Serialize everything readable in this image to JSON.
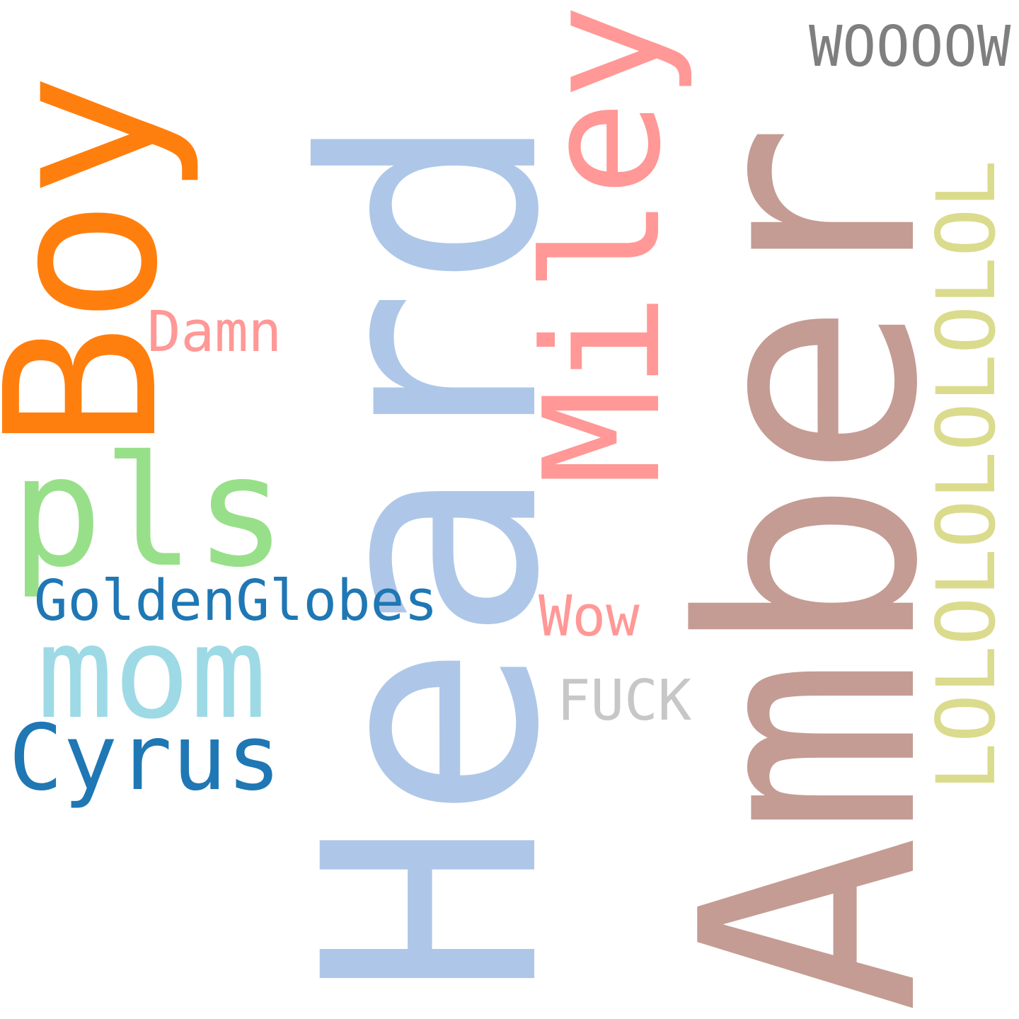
{
  "words": [
    {
      "text": "Amber",
      "color": "#c49c94"
    },
    {
      "text": "Heard",
      "color": "#aec7e8"
    },
    {
      "text": "Boy",
      "color": "#ff7f0e"
    },
    {
      "text": "Miley",
      "color": "#ff9896"
    },
    {
      "text": "LOLOLOLOLOLOL",
      "color": "#dbdb8d"
    },
    {
      "text": "pls",
      "color": "#98df8a"
    },
    {
      "text": "mom",
      "color": "#9edae5"
    },
    {
      "text": "Cyrus",
      "color": "#1f77b4"
    },
    {
      "text": "GoldenGlobes",
      "color": "#1f77b4"
    },
    {
      "text": "WOOOOW",
      "color": "#7f7f7f"
    },
    {
      "text": "Damn",
      "color": "#ff9896"
    },
    {
      "text": "Wow",
      "color": "#ff9896"
    },
    {
      "text": "FUCK",
      "color": "#c7c7c7"
    }
  ]
}
